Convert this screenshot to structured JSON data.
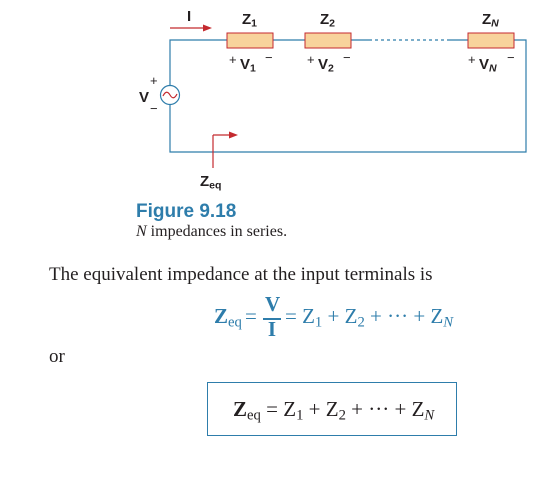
{
  "circuit": {
    "current_label": "I",
    "source_label": "V",
    "plus_sign": "+",
    "minus_sign": "−",
    "z1_label": "Z",
    "z1_sub": "1",
    "z2_label": "Z",
    "z2_sub": "2",
    "zn_label": "Z",
    "zn_sub": "N",
    "v1_label": "V",
    "v1_sub": "1",
    "v2_label": "V",
    "v2_sub": "2",
    "vn_label": "V",
    "vn_sub": "N",
    "zeq_label": "Z",
    "zeq_sub": "eq",
    "colors": {
      "resistor_fill": "#f8d39c",
      "resistor_stroke": "#c42a2f",
      "wire": "#2e7dab",
      "arrow": "#c42a2f"
    }
  },
  "figure": {
    "number": "Figure 9.18",
    "caption_italic": "N",
    "caption_rest": " impedances in series."
  },
  "body": {
    "intro": "The equivalent impedance at the input terminals is",
    "or": "or"
  },
  "equation1": {
    "lhs": "Z",
    "lhs_sub": "eq",
    "equals": "=",
    "num": "V",
    "den": "I",
    "rhs_prefix": "= Z",
    "z1_sub": "1",
    "plus1": " + Z",
    "z2_sub": "2",
    "plus2": " + ··· + Z",
    "zn_sub": "N"
  },
  "equation2": {
    "lhs": "Z",
    "lhs_sub": "eq",
    "rhs_prefix": " = Z",
    "z1_sub": "1",
    "plus1": " + Z",
    "z2_sub": "2",
    "plus2": " + ··· + Z",
    "zn_sub": "N"
  }
}
